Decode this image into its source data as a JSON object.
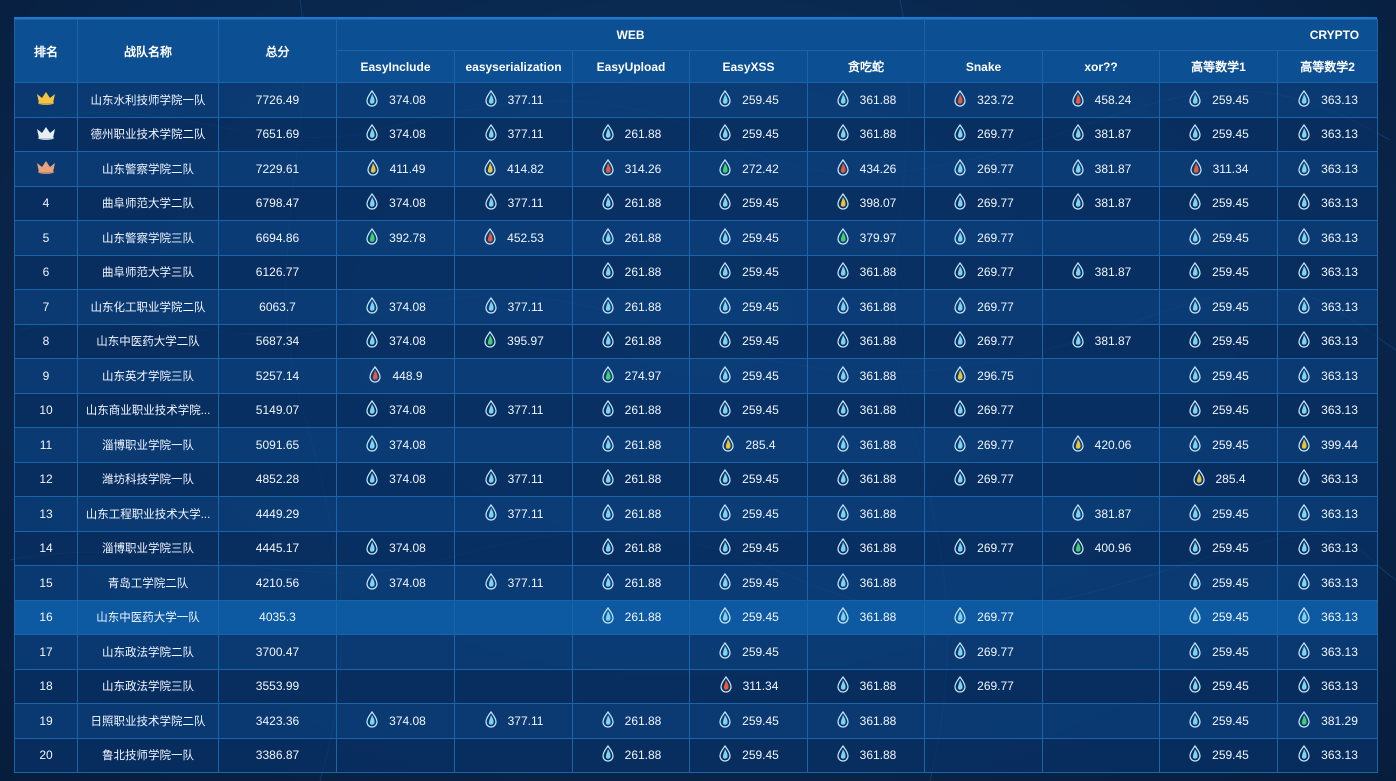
{
  "header": {
    "rank": "排名",
    "team": "战队名称",
    "total": "总分",
    "categories": {
      "web": "WEB",
      "crypto": "CRYPTO"
    },
    "challenges": [
      "EasyInclude",
      "easyserialization",
      "EasyUpload",
      "EasyXSS",
      "贪吃蛇",
      "Snake",
      "xor??",
      "高等数学1",
      "高等数学2"
    ]
  },
  "icon_colors": {
    "c": "#7ed2ef",
    "g": "#e8c23a",
    "r": "#e65a3a",
    "e": "#3fcf6c"
  },
  "rows": [
    {
      "rank": "",
      "medal": "gold",
      "team": "山东水利技师学院一队",
      "total": "7726.49",
      "scores": [
        [
          "c",
          "374.08"
        ],
        [
          "c",
          "377.11"
        ],
        null,
        [
          "c",
          "259.45"
        ],
        [
          "c",
          "361.88"
        ],
        [
          "r",
          "323.72"
        ],
        [
          "r",
          "458.24"
        ],
        [
          "c",
          "259.45"
        ],
        [
          "c",
          "363.13"
        ]
      ]
    },
    {
      "rank": "",
      "medal": "silver",
      "team": "德州职业技术学院二队",
      "total": "7651.69",
      "scores": [
        [
          "c",
          "374.08"
        ],
        [
          "c",
          "377.11"
        ],
        [
          "c",
          "261.88"
        ],
        [
          "c",
          "259.45"
        ],
        [
          "c",
          "361.88"
        ],
        [
          "c",
          "269.77"
        ],
        [
          "c",
          "381.87"
        ],
        [
          "c",
          "259.45"
        ],
        [
          "c",
          "363.13"
        ]
      ]
    },
    {
      "rank": "",
      "medal": "bronze",
      "team": "山东警察学院二队",
      "total": "7229.61",
      "scores": [
        [
          "g",
          "411.49"
        ],
        [
          "g",
          "414.82"
        ],
        [
          "r",
          "314.26"
        ],
        [
          "e",
          "272.42"
        ],
        [
          "r",
          "434.26"
        ],
        [
          "c",
          "269.77"
        ],
        [
          "c",
          "381.87"
        ],
        [
          "r",
          "311.34"
        ],
        [
          "c",
          "363.13"
        ]
      ]
    },
    {
      "rank": "4",
      "team": "曲阜师范大学二队",
      "total": "6798.47",
      "scores": [
        [
          "c",
          "374.08"
        ],
        [
          "c",
          "377.11"
        ],
        [
          "c",
          "261.88"
        ],
        [
          "c",
          "259.45"
        ],
        [
          "g",
          "398.07"
        ],
        [
          "c",
          "269.77"
        ],
        [
          "c",
          "381.87"
        ],
        [
          "c",
          "259.45"
        ],
        [
          "c",
          "363.13"
        ]
      ]
    },
    {
      "rank": "5",
      "team": "山东警察学院三队",
      "total": "6694.86",
      "scores": [
        [
          "e",
          "392.78"
        ],
        [
          "r",
          "452.53"
        ],
        [
          "c",
          "261.88"
        ],
        [
          "c",
          "259.45"
        ],
        [
          "e",
          "379.97"
        ],
        [
          "c",
          "269.77"
        ],
        null,
        [
          "c",
          "259.45"
        ],
        [
          "c",
          "363.13"
        ]
      ]
    },
    {
      "rank": "6",
      "team": "曲阜师范大学三队",
      "total": "6126.77",
      "scores": [
        null,
        null,
        [
          "c",
          "261.88"
        ],
        [
          "c",
          "259.45"
        ],
        [
          "c",
          "361.88"
        ],
        [
          "c",
          "269.77"
        ],
        [
          "c",
          "381.87"
        ],
        [
          "c",
          "259.45"
        ],
        [
          "c",
          "363.13"
        ]
      ]
    },
    {
      "rank": "7",
      "team": "山东化工职业学院二队",
      "total": "6063.7",
      "scores": [
        [
          "c",
          "374.08"
        ],
        [
          "c",
          "377.11"
        ],
        [
          "c",
          "261.88"
        ],
        [
          "c",
          "259.45"
        ],
        [
          "c",
          "361.88"
        ],
        [
          "c",
          "269.77"
        ],
        null,
        [
          "c",
          "259.45"
        ],
        [
          "c",
          "363.13"
        ]
      ]
    },
    {
      "rank": "8",
      "team": "山东中医药大学二队",
      "total": "5687.34",
      "scores": [
        [
          "c",
          "374.08"
        ],
        [
          "e",
          "395.97"
        ],
        [
          "c",
          "261.88"
        ],
        [
          "c",
          "259.45"
        ],
        [
          "c",
          "361.88"
        ],
        [
          "c",
          "269.77"
        ],
        [
          "c",
          "381.87"
        ],
        [
          "c",
          "259.45"
        ],
        [
          "c",
          "363.13"
        ]
      ]
    },
    {
      "rank": "9",
      "team": "山东英才学院三队",
      "total": "5257.14",
      "scores": [
        [
          "r",
          "448.9"
        ],
        null,
        [
          "e",
          "274.97"
        ],
        [
          "c",
          "259.45"
        ],
        [
          "c",
          "361.88"
        ],
        [
          "g",
          "296.75"
        ],
        null,
        [
          "c",
          "259.45"
        ],
        [
          "c",
          "363.13"
        ]
      ]
    },
    {
      "rank": "10",
      "team": "山东商业职业技术学院...",
      "total": "5149.07",
      "scores": [
        [
          "c",
          "374.08"
        ],
        [
          "c",
          "377.11"
        ],
        [
          "c",
          "261.88"
        ],
        [
          "c",
          "259.45"
        ],
        [
          "c",
          "361.88"
        ],
        [
          "c",
          "269.77"
        ],
        null,
        [
          "c",
          "259.45"
        ],
        [
          "c",
          "363.13"
        ]
      ]
    },
    {
      "rank": "11",
      "team": "淄博职业学院一队",
      "total": "5091.65",
      "scores": [
        [
          "c",
          "374.08"
        ],
        null,
        [
          "c",
          "261.88"
        ],
        [
          "g",
          "285.4"
        ],
        [
          "c",
          "361.88"
        ],
        [
          "c",
          "269.77"
        ],
        [
          "g",
          "420.06"
        ],
        [
          "c",
          "259.45"
        ],
        [
          "g",
          "399.44"
        ]
      ]
    },
    {
      "rank": "12",
      "team": "潍坊科技学院一队",
      "total": "4852.28",
      "scores": [
        [
          "c",
          "374.08"
        ],
        [
          "c",
          "377.11"
        ],
        [
          "c",
          "261.88"
        ],
        [
          "c",
          "259.45"
        ],
        [
          "c",
          "361.88"
        ],
        [
          "c",
          "269.77"
        ],
        null,
        [
          "g",
          "285.4"
        ],
        [
          "c",
          "363.13"
        ]
      ]
    },
    {
      "rank": "13",
      "team": "山东工程职业技术大学...",
      "total": "4449.29",
      "scores": [
        null,
        [
          "c",
          "377.11"
        ],
        [
          "c",
          "261.88"
        ],
        [
          "c",
          "259.45"
        ],
        [
          "c",
          "361.88"
        ],
        null,
        [
          "c",
          "381.87"
        ],
        [
          "c",
          "259.45"
        ],
        [
          "c",
          "363.13"
        ]
      ]
    },
    {
      "rank": "14",
      "team": "淄博职业学院三队",
      "total": "4445.17",
      "scores": [
        [
          "c",
          "374.08"
        ],
        null,
        [
          "c",
          "261.88"
        ],
        [
          "c",
          "259.45"
        ],
        [
          "c",
          "361.88"
        ],
        [
          "c",
          "269.77"
        ],
        [
          "e",
          "400.96"
        ],
        [
          "c",
          "259.45"
        ],
        [
          "c",
          "363.13"
        ]
      ]
    },
    {
      "rank": "15",
      "team": "青岛工学院二队",
      "total": "4210.56",
      "scores": [
        [
          "c",
          "374.08"
        ],
        [
          "c",
          "377.11"
        ],
        [
          "c",
          "261.88"
        ],
        [
          "c",
          "259.45"
        ],
        [
          "c",
          "361.88"
        ],
        null,
        null,
        [
          "c",
          "259.45"
        ],
        [
          "c",
          "363.13"
        ]
      ]
    },
    {
      "rank": "16",
      "team": "山东中医药大学一队",
      "total": "4035.3",
      "highlight": true,
      "scores": [
        null,
        null,
        [
          "c",
          "261.88"
        ],
        [
          "c",
          "259.45"
        ],
        [
          "c",
          "361.88"
        ],
        [
          "c",
          "269.77"
        ],
        null,
        [
          "c",
          "259.45"
        ],
        [
          "c",
          "363.13"
        ]
      ]
    },
    {
      "rank": "17",
      "team": "山东政法学院二队",
      "total": "3700.47",
      "scores": [
        null,
        null,
        null,
        [
          "c",
          "259.45"
        ],
        null,
        [
          "c",
          "269.77"
        ],
        null,
        [
          "c",
          "259.45"
        ],
        [
          "c",
          "363.13"
        ]
      ]
    },
    {
      "rank": "18",
      "team": "山东政法学院三队",
      "total": "3553.99",
      "scores": [
        null,
        null,
        null,
        [
          "r",
          "311.34"
        ],
        [
          "c",
          "361.88"
        ],
        [
          "c",
          "269.77"
        ],
        null,
        [
          "c",
          "259.45"
        ],
        [
          "c",
          "363.13"
        ]
      ]
    },
    {
      "rank": "19",
      "team": "日照职业技术学院二队",
      "total": "3423.36",
      "scores": [
        [
          "c",
          "374.08"
        ],
        [
          "c",
          "377.11"
        ],
        [
          "c",
          "261.88"
        ],
        [
          "c",
          "259.45"
        ],
        [
          "c",
          "361.88"
        ],
        null,
        null,
        [
          "c",
          "259.45"
        ],
        [
          "e",
          "381.29"
        ]
      ]
    },
    {
      "rank": "20",
      "team": "鲁北技师学院一队",
      "total": "3386.87",
      "scores": [
        null,
        null,
        [
          "c",
          "261.88"
        ],
        [
          "c",
          "259.45"
        ],
        [
          "c",
          "361.88"
        ],
        null,
        null,
        [
          "c",
          "259.45"
        ],
        [
          "c",
          "363.13"
        ]
      ]
    }
  ]
}
